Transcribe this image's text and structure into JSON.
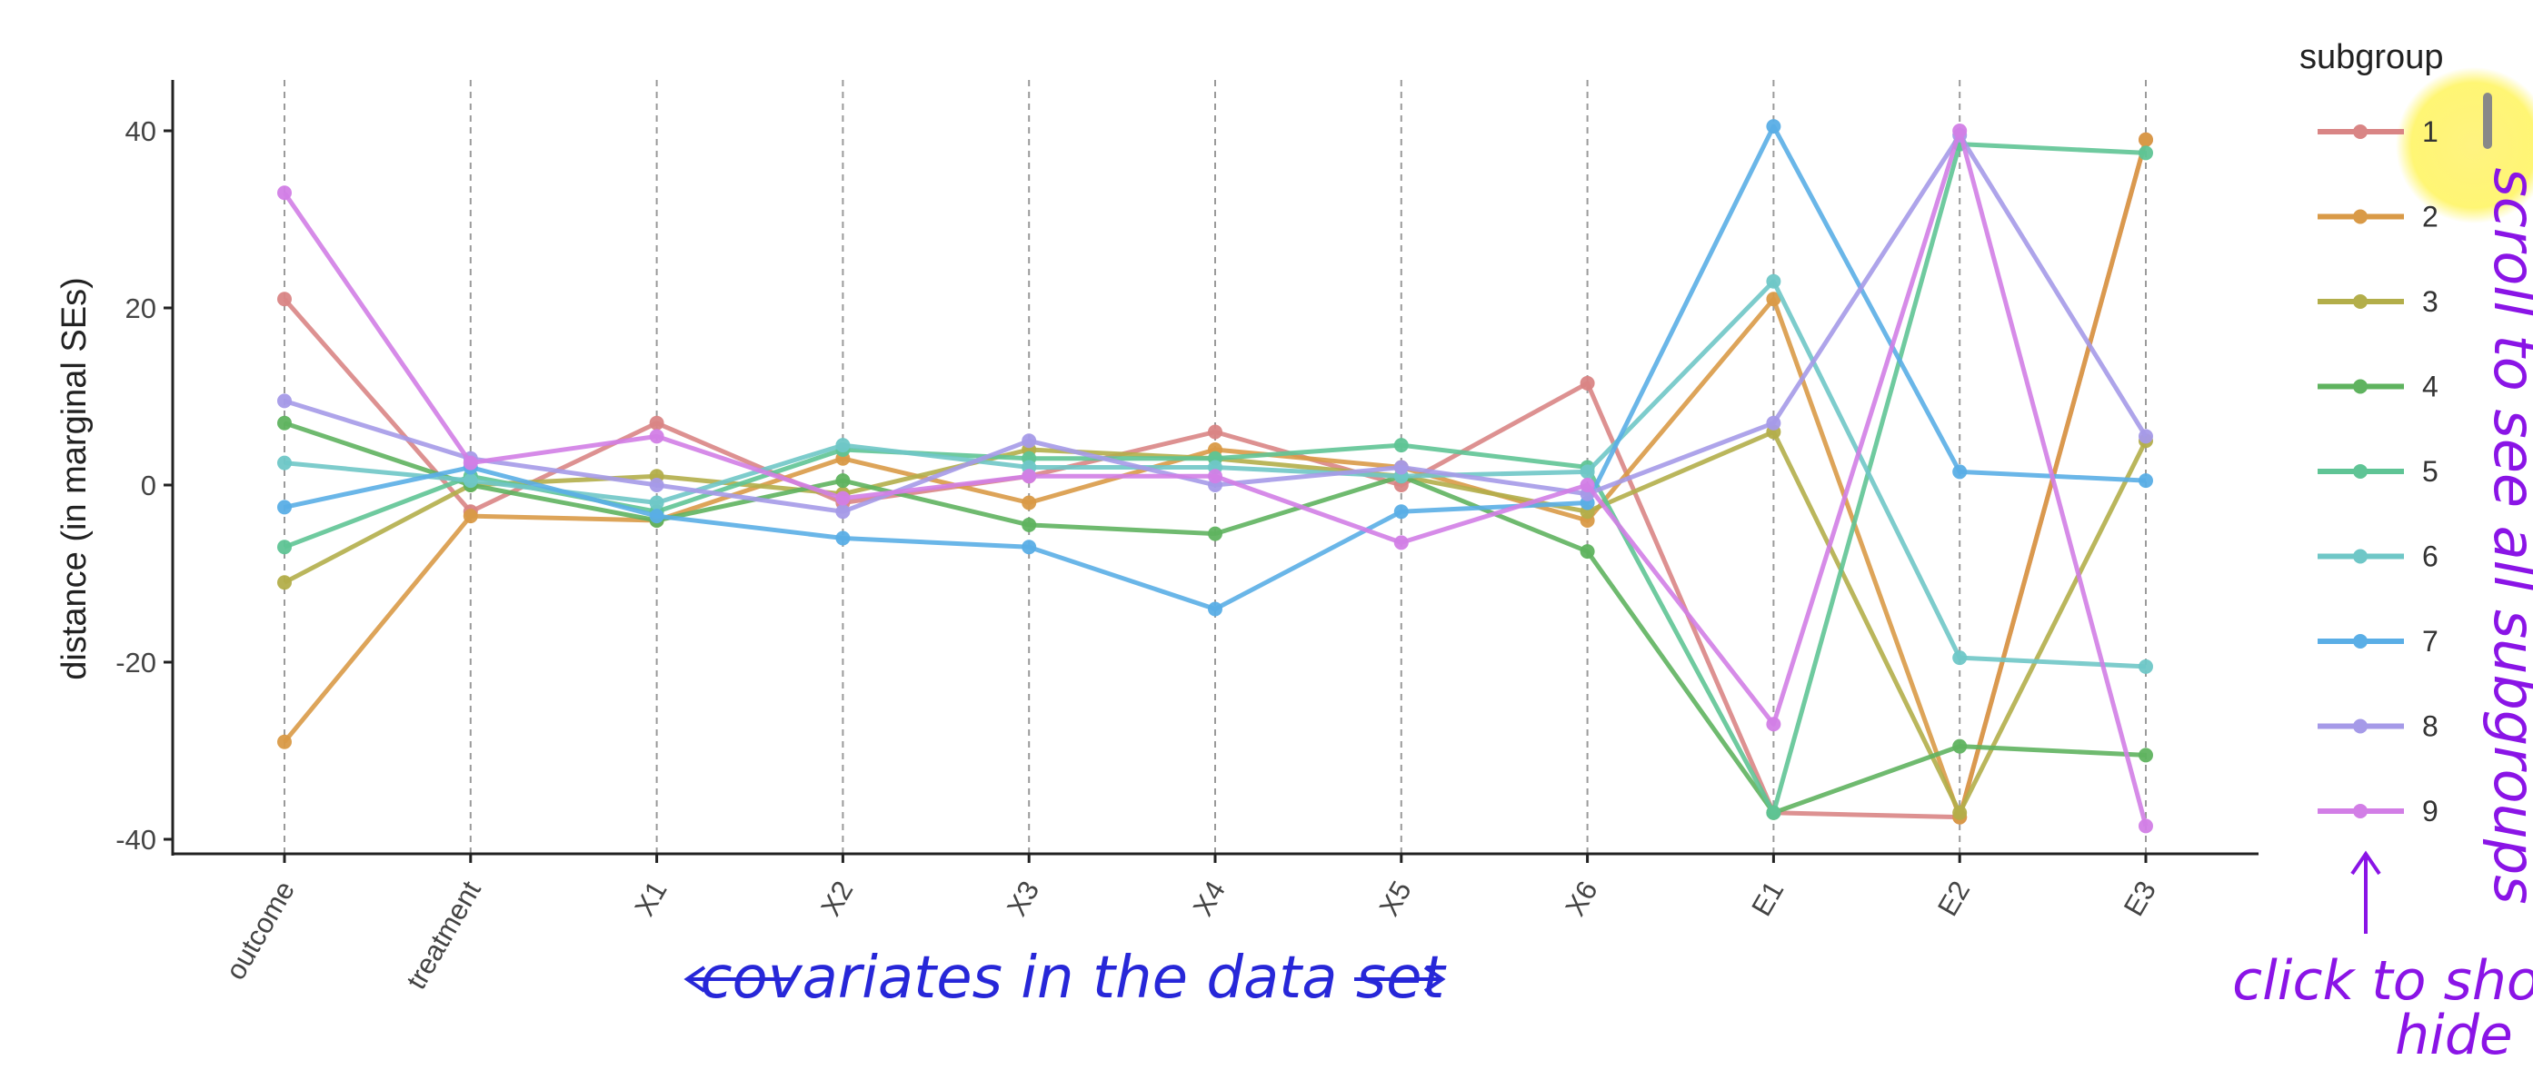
{
  "chart_data": {
    "type": "line",
    "categories": [
      "outcome",
      "treatment",
      "X1",
      "X2",
      "X3",
      "X4",
      "X5",
      "X6",
      "E1",
      "E2",
      "E3"
    ],
    "ylabel": "distance (in marginal SEs)",
    "xlabel": "",
    "ylim": [
      -42,
      45
    ],
    "yticks": [
      40,
      20,
      0,
      -20,
      -40
    ],
    "ytick_labels": [
      "40",
      "20",
      "0",
      "-20",
      "-40"
    ],
    "grid": "vertical dashed lines at each category",
    "legend": {
      "title": "subgroup",
      "placement": "right"
    },
    "series": [
      {
        "name": "1",
        "color": "#d98585",
        "values": [
          21,
          -3,
          7,
          -2,
          1,
          6,
          0,
          11.5,
          -37,
          -37.5,
          39
        ]
      },
      {
        "name": "2",
        "color": "#d99a47",
        "values": [
          -29,
          -3.5,
          -4,
          3,
          -2,
          4,
          2,
          -4,
          21,
          -37.5,
          39
        ]
      },
      {
        "name": "3",
        "color": "#b3ae4a",
        "values": [
          -11,
          0,
          1,
          -1,
          4,
          3,
          1,
          -3,
          6,
          -37,
          5
        ]
      },
      {
        "name": "4",
        "color": "#5fb35f",
        "values": [
          7,
          0,
          -4,
          0.5,
          -4.5,
          -5.5,
          1,
          -7.5,
          -37,
          -29.5,
          -30.5
        ]
      },
      {
        "name": "5",
        "color": "#5fc495",
        "values": [
          -7,
          1,
          -3,
          4,
          3,
          3,
          4.5,
          2,
          -37,
          38.5,
          37.5
        ]
      },
      {
        "name": "6",
        "color": "#6fc7c7",
        "values": [
          2.5,
          0.5,
          -2,
          4.5,
          2,
          2,
          1,
          1.5,
          23,
          -19.5,
          -20.5
        ]
      },
      {
        "name": "7",
        "color": "#5aaee6",
        "values": [
          -2.5,
          2,
          -3.5,
          -6,
          -7,
          -14,
          -3,
          -2,
          40.5,
          1.5,
          0.5
        ]
      },
      {
        "name": "8",
        "color": "#a59ae8",
        "values": [
          9.5,
          3,
          0,
          -3,
          5,
          0,
          2,
          -1,
          7,
          39.5,
          5.5
        ]
      },
      {
        "name": "9",
        "color": "#d27ee6",
        "values": [
          33,
          2.5,
          5.5,
          -1.5,
          1,
          1,
          -6.5,
          0,
          -27,
          40,
          -38.5
        ]
      }
    ]
  },
  "annotations": {
    "arrow_label": "covariates in the data set",
    "scroll_label": "scroll to see all subgroups",
    "click_label_line1": "click to show/",
    "click_label_line2": "hide"
  }
}
